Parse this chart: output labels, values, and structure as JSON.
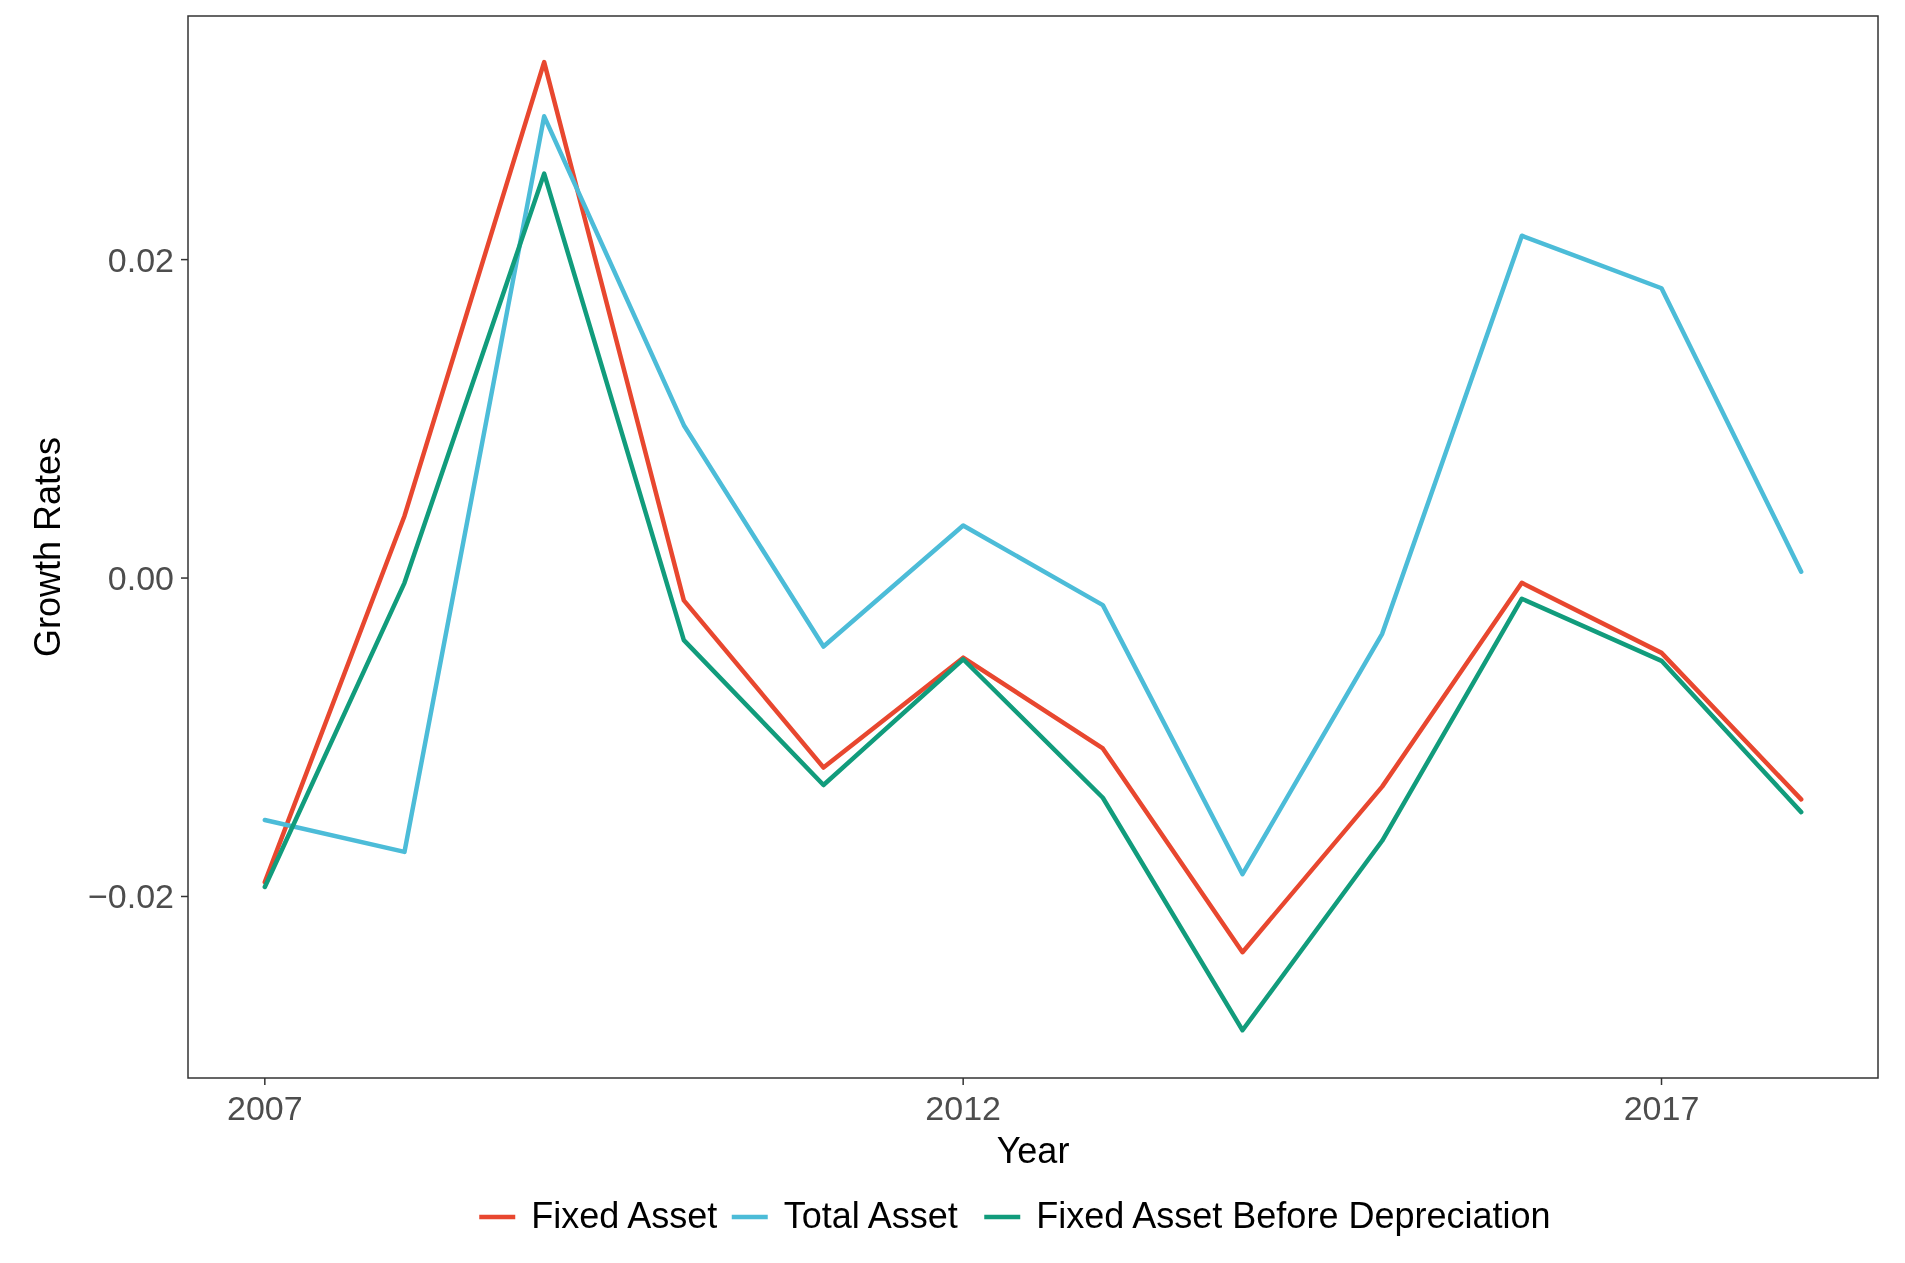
{
  "chart_data": {
    "type": "line",
    "xlabel": "Year",
    "ylabel": "Growth Rates",
    "x": [
      2007,
      2008,
      2009,
      2010,
      2011,
      2012,
      2013,
      2014,
      2015,
      2016,
      2017,
      2018
    ],
    "xlim": [
      2006.45,
      2018.55
    ],
    "xticks": [
      2007,
      2012,
      2017
    ],
    "ylim": [
      -0.0314,
      0.0353
    ],
    "yticks": [
      {
        "value": -0.02,
        "label": "−0.02"
      },
      {
        "value": 0,
        "label": "0.00"
      },
      {
        "value": 0.02,
        "label": "0.02"
      }
    ],
    "grid": false,
    "legend": "bottom",
    "line_style": "solid",
    "marker": "none",
    "series": [
      {
        "name": "Fixed Asset",
        "color": "#e8472f",
        "values": [
          -0.0191,
          0.0039,
          0.0324,
          -0.0014,
          -0.0119,
          -0.005,
          -0.0107,
          -0.0235,
          -0.0131,
          -0.0003,
          -0.0047,
          -0.0139
        ]
      },
      {
        "name": "Total Asset",
        "color": "#4cbcd8",
        "values": [
          -0.0152,
          -0.0172,
          0.029,
          0.0096,
          -0.0043,
          0.0033,
          -0.0017,
          -0.0186,
          -0.0035,
          0.0215,
          0.0182,
          0.0004
        ]
      },
      {
        "name": "Fixed Asset Before Depreciation",
        "color": "#119c7c",
        "values": [
          -0.0194,
          -0.0003,
          0.0254,
          -0.0039,
          -0.013,
          -0.0051,
          -0.0138,
          -0.0284,
          -0.0165,
          -0.0013,
          -0.0052,
          -0.0147
        ]
      }
    ]
  }
}
